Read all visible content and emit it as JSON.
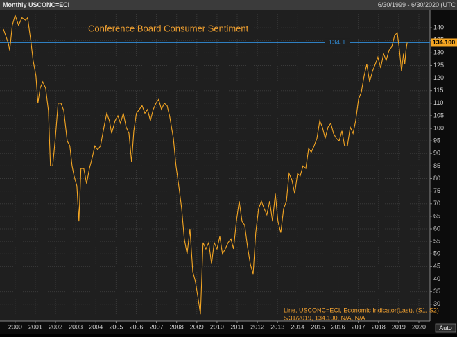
{
  "header": {
    "left": "Monthly USCONC=ECI",
    "right": "6/30/1999 - 6/30/2020 (UTC"
  },
  "auto_button": "Auto",
  "chart_data": {
    "type": "line",
    "title": "Conference Board Consumer Sentiment",
    "color": "#f5a623",
    "x": [
      1999.42,
      1999.66,
      1999.73,
      1999.86,
      2000.0,
      2000.17,
      2000.34,
      2000.52,
      2000.62,
      2000.79,
      2000.89,
      2001.03,
      2001.13,
      2001.24,
      2001.37,
      2001.51,
      2001.65,
      2001.75,
      2001.86,
      2001.99,
      2002.13,
      2002.27,
      2002.41,
      2002.58,
      2002.71,
      2002.82,
      2002.92,
      2003.06,
      2003.16,
      2003.26,
      2003.4,
      2003.54,
      2003.68,
      2003.81,
      2003.95,
      2004.09,
      2004.23,
      2004.4,
      2004.54,
      2004.67,
      2004.78,
      2004.95,
      2005.09,
      2005.22,
      2005.36,
      2005.5,
      2005.64,
      2005.77,
      2005.88,
      2006.01,
      2006.15,
      2006.29,
      2006.43,
      2006.56,
      2006.7,
      2006.84,
      2006.98,
      2007.11,
      2007.25,
      2007.39,
      2007.53,
      2007.66,
      2007.84,
      2007.97,
      2008.11,
      2008.25,
      2008.38,
      2008.52,
      2008.66,
      2008.8,
      2008.93,
      2009.07,
      2009.18,
      2009.31,
      2009.45,
      2009.59,
      2009.73,
      2009.86,
      2010.0,
      2010.14,
      2010.27,
      2010.41,
      2010.55,
      2010.69,
      2010.82,
      2010.96,
      2011.1,
      2011.24,
      2011.37,
      2011.51,
      2011.65,
      2011.79,
      2011.92,
      2012.06,
      2012.2,
      2012.34,
      2012.47,
      2012.61,
      2012.75,
      2012.89,
      2013.02,
      2013.16,
      2013.3,
      2013.44,
      2013.57,
      2013.71,
      2013.85,
      2013.99,
      2014.12,
      2014.26,
      2014.4,
      2014.54,
      2014.67,
      2014.81,
      2014.95,
      2015.09,
      2015.22,
      2015.36,
      2015.5,
      2015.64,
      2015.77,
      2015.91,
      2016.05,
      2016.19,
      2016.32,
      2016.46,
      2016.6,
      2016.74,
      2016.87,
      2017.01,
      2017.15,
      2017.29,
      2017.42,
      2017.56,
      2017.7,
      2017.84,
      2017.97,
      2018.11,
      2018.25,
      2018.38,
      2018.52,
      2018.66,
      2018.8,
      2018.93,
      2019.04,
      2019.14,
      2019.24,
      2019.3,
      2019.36,
      2019.42
    ],
    "values": [
      139.5,
      134,
      131,
      141,
      145,
      141,
      144,
      143,
      144,
      134,
      127,
      121,
      110,
      116,
      118.5,
      116,
      107,
      85,
      85,
      96,
      110,
      110,
      107,
      95,
      93,
      85,
      81,
      77,
      63,
      84,
      84,
      78,
      84,
      88,
      93,
      91.5,
      93,
      100.5,
      106,
      103,
      98,
      103,
      105,
      102,
      106,
      100.5,
      98,
      86.5,
      99,
      106,
      107.5,
      109,
      106,
      107.5,
      103,
      107.5,
      110,
      111.5,
      107.5,
      110,
      109,
      104.6,
      96,
      85,
      77,
      68,
      56,
      50,
      60,
      43,
      39,
      32,
      26,
      54.5,
      52,
      54.5,
      46,
      54.5,
      52,
      57,
      50,
      52,
      54.5,
      56,
      52,
      63,
      71,
      63,
      61.5,
      53,
      46,
      42,
      58.5,
      68,
      71,
      68,
      65.6,
      71,
      63,
      74,
      63,
      58.5,
      68,
      71,
      82,
      79.5,
      74,
      82,
      81,
      85,
      84,
      92,
      90.5,
      93,
      96,
      103,
      100.5,
      96,
      100.5,
      102,
      98,
      96,
      95,
      99,
      93,
      93,
      100.5,
      98,
      103,
      111.5,
      114.4,
      121,
      125.5,
      118.5,
      122.7,
      125.5,
      128.3,
      124,
      129.7,
      127,
      131,
      132.5,
      137,
      138,
      131,
      122.7,
      129.7,
      125.5,
      131,
      134.1
    ],
    "xlim": [
      1999.25,
      2020.55
    ],
    "xticks": [
      2000,
      2001,
      2002,
      2003,
      2004,
      2005,
      2006,
      2007,
      2008,
      2009,
      2010,
      2011,
      2012,
      2013,
      2014,
      2015,
      2016,
      2017,
      2018,
      2019,
      2020
    ],
    "ylim": [
      23.3,
      147.2
    ],
    "yticks": [
      30,
      35,
      40,
      45,
      50,
      55,
      60,
      65,
      70,
      75,
      80,
      85,
      90,
      95,
      100,
      105,
      110,
      115,
      120,
      125,
      130,
      135,
      140
    ],
    "grid": true,
    "reference_line": {
      "value": 134.1,
      "color": "#2f7fc1"
    },
    "last_value": {
      "value": 134.1,
      "label": "134.100"
    },
    "legend": [
      "Line, USCONC=ECI, Economic Indicator(Last), (S1, S2)",
      "5/31/2019, 134.100, N/A, N/A"
    ]
  }
}
